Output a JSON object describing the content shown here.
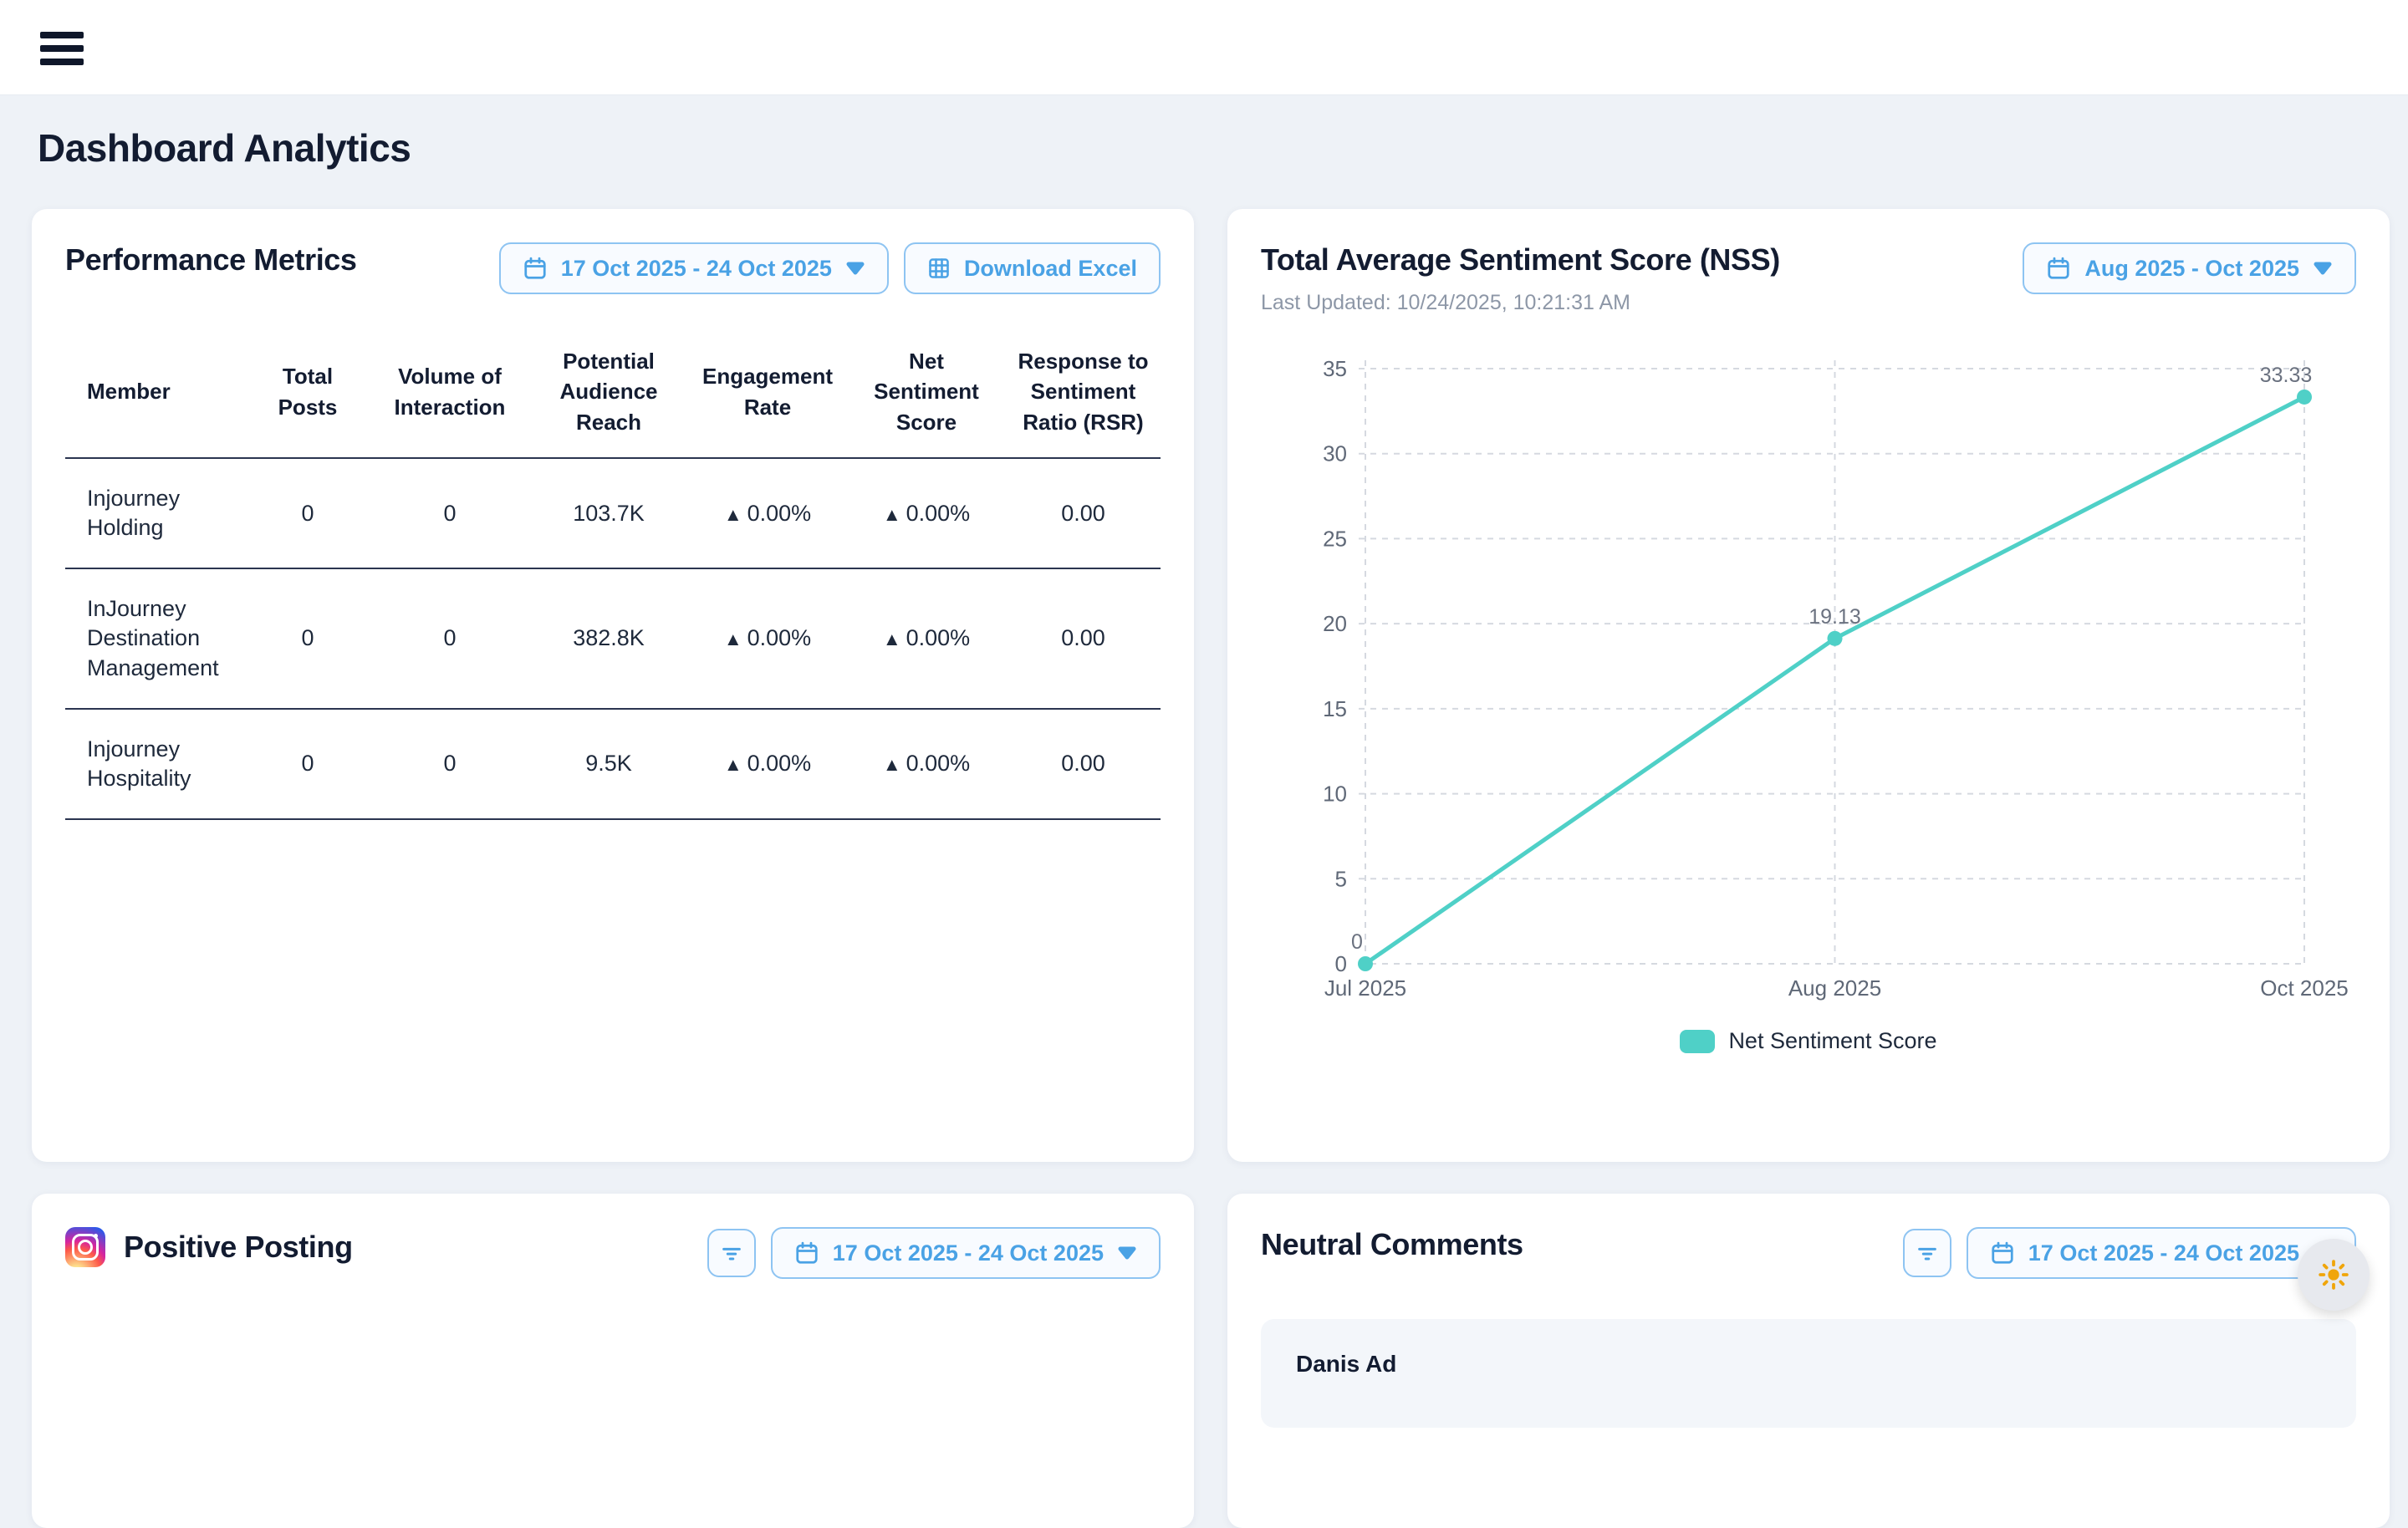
{
  "page_title": "Dashboard Analytics",
  "icons": {
    "up_triangle": "▲"
  },
  "colors": {
    "accent_blue": "#4aa2e5",
    "chart_teal": "#4fd0c7",
    "positive_green": "#6fd585",
    "heading_navy": "#131c31",
    "background": "#eef2f7"
  },
  "performance": {
    "title": "Performance Metrics",
    "date_range": "17 Oct 2025 - 24 Oct 2025",
    "download_label": "Download Excel",
    "table": {
      "columns": [
        "Member",
        "Total Posts",
        "Volume of Interaction",
        "Potential Audience Reach",
        "Engagement Rate",
        "Net Sentiment Score",
        "Response to Sentiment Ratio (RSR)"
      ],
      "rows": [
        {
          "member": "Injourney Holding",
          "total_posts": "0",
          "volume_of_interaction": "0",
          "potential_audience_reach": "103.7K",
          "engagement_rate": "0.00%",
          "net_sentiment_score": "0.00%",
          "rsr": "0.00"
        },
        {
          "member": "InJourney Destination Management",
          "total_posts": "0",
          "volume_of_interaction": "0",
          "potential_audience_reach": "382.8K",
          "engagement_rate": "0.00%",
          "net_sentiment_score": "0.00%",
          "rsr": "0.00"
        },
        {
          "member": "Injourney Hospitality",
          "total_posts": "0",
          "volume_of_interaction": "0",
          "potential_audience_reach": "9.5K",
          "engagement_rate": "0.00%",
          "net_sentiment_score": "0.00%",
          "rsr": "0.00"
        }
      ]
    }
  },
  "nss": {
    "title": "Total Average Sentiment Score (NSS)",
    "last_updated": "Last Updated: 10/24/2025, 10:21:31 AM",
    "date_range": "Aug 2025 - Oct 2025"
  },
  "chart_data": {
    "type": "line",
    "title": "Total Average Sentiment Score (NSS)",
    "x": [
      "Jul 2025",
      "Aug 2025",
      "Oct 2025"
    ],
    "series": [
      {
        "name": "Net Sentiment Score",
        "values": [
          0,
          19.13,
          33.33
        ],
        "color": "#4fd0c7"
      }
    ],
    "point_labels": [
      "0",
      "19.13",
      "33.33"
    ],
    "xlabel": "",
    "ylabel": "",
    "ylim": [
      0,
      35
    ],
    "yticks": [
      0,
      5,
      10,
      15,
      20,
      25,
      30,
      35
    ],
    "grid": true,
    "legend_position": "bottom"
  },
  "positive": {
    "title": "Positive Posting",
    "date_range": "17 Oct 2025 - 24 Oct 2025"
  },
  "neutral": {
    "title": "Neutral Comments",
    "date_range": "17 Oct 2025 - 24 Oct 2025",
    "comment_author": "Danis Ad"
  }
}
